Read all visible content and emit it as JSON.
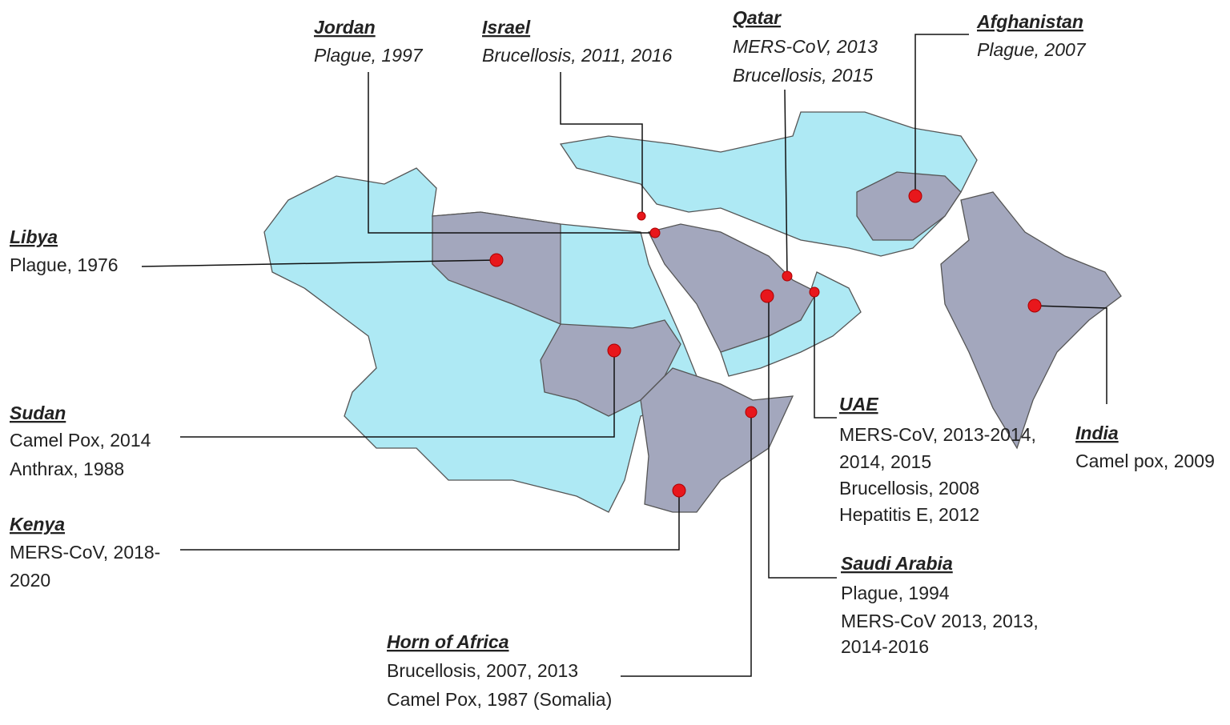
{
  "labels": [
    {
      "name": "Jordan",
      "lines": [
        "Plague, 1997"
      ]
    },
    {
      "name": "Israel",
      "lines": [
        "Brucellosis, 2011, 2016"
      ]
    },
    {
      "name": "Qatar",
      "lines": [
        "MERS-CoV, 2013",
        "Brucellosis, 2015"
      ]
    },
    {
      "name": "Afghanistan",
      "lines": [
        "Plague, 2007"
      ]
    },
    {
      "name": "Libya",
      "lines": [
        "Plague, 1976"
      ]
    },
    {
      "name": "Sudan",
      "lines": [
        "Camel Pox, 2014",
        "Anthrax, 1988"
      ]
    },
    {
      "name": "Kenya",
      "lines": [
        "MERS-CoV, 2018-",
        "2020"
      ]
    },
    {
      "name": "Horn of Africa",
      "lines": [
        "Brucellosis, 2007, 2013",
        "Camel Pox, 1987 (Somalia)"
      ]
    },
    {
      "name": "UAE",
      "lines": [
        "MERS-CoV, 2013-2014,",
        "2014, 2015",
        "Brucellosis, 2008",
        "Hepatitis E, 2012"
      ]
    },
    {
      "name": "Saudi Arabia",
      "lines": [
        "Plague, 1994",
        "MERS-CoV 2013, 2013,",
        "2014-2016"
      ]
    },
    {
      "name": "India",
      "lines": [
        "Camel pox, 2009"
      ]
    }
  ]
}
